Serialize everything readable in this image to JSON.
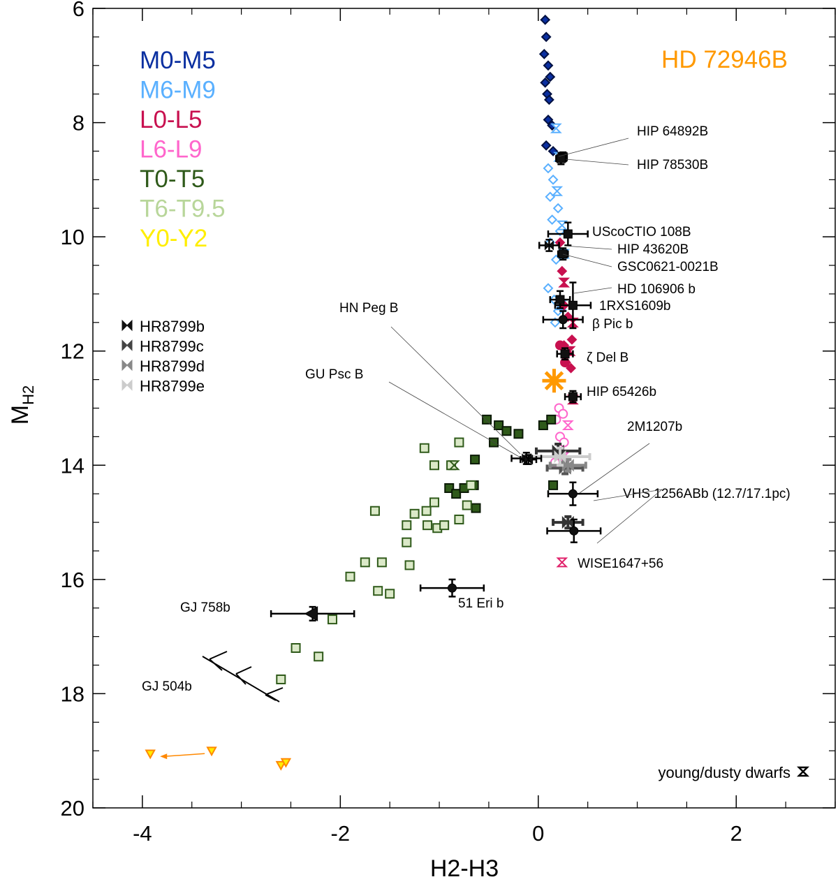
{
  "chart_data": {
    "type": "scatter",
    "title": "HD 72946B",
    "xlabel": "H2-H3",
    "ylabel": "M",
    "ylabel_sub": "H2",
    "xlim": [
      -4.5,
      3.0
    ],
    "ylim": [
      20,
      6
    ],
    "x_ticks": [
      -4,
      -2,
      0,
      2
    ],
    "x_tick_labels": [
      "-4",
      "-2",
      "0",
      "2"
    ],
    "y_ticks": [
      6,
      8,
      10,
      12,
      14,
      16,
      18,
      20
    ],
    "y_tick_labels": [
      "6",
      "8",
      "10",
      "12",
      "14",
      "16",
      "18",
      "20"
    ],
    "colors": {
      "M0-M5": "#0a2fa0",
      "M6-M9": "#5ab0ff",
      "L0-L5": "#c8104f",
      "L6-L9": "#ff66cc",
      "T0-T5": "#2f5a1a",
      "T6-T9.5": "#b8d69a",
      "Y0-Y2": "#ffee00",
      "target": "#ff9900",
      "wise": "#e0206a",
      "y_dwarf_edge": "#ff8800"
    },
    "legend": [
      {
        "label": "M0-M5",
        "color": "#0a2fa0"
      },
      {
        "label": "M6-M9",
        "color": "#5ab0ff"
      },
      {
        "label": "L0-L5",
        "color": "#c8104f"
      },
      {
        "label": "L6-L9",
        "color": "#ff66cc"
      },
      {
        "label": "T0-T5",
        "color": "#2f5a1a"
      },
      {
        "label": "T6-T9.5",
        "color": "#b8d69a"
      },
      {
        "label": "Y0-Y2",
        "color": "#ffee00"
      }
    ],
    "hr8799_legend": [
      {
        "label": "HR8799b",
        "color": "#111111"
      },
      {
        "label": "HR8799c",
        "color": "#444444"
      },
      {
        "label": "HR8799d",
        "color": "#888888"
      },
      {
        "label": "HR8799e",
        "color": "#cccccc"
      }
    ],
    "young_dwarf_label": "young/dusty dwarfs",
    "field_series": [
      {
        "name": "M0-M5",
        "marker": "diamond",
        "filled": true,
        "points": [
          [
            0.07,
            6.2
          ],
          [
            0.08,
            6.5
          ],
          [
            0.06,
            6.8
          ],
          [
            0.1,
            7.0
          ],
          [
            0.07,
            7.3
          ],
          [
            0.12,
            7.2
          ],
          [
            0.09,
            7.5
          ],
          [
            0.11,
            7.6
          ],
          [
            0.1,
            7.95
          ],
          [
            0.14,
            8.05
          ],
          [
            0.08,
            8.4
          ],
          [
            0.15,
            8.5
          ]
        ]
      },
      {
        "name": "M6-M9",
        "marker": "diamond",
        "filled": false,
        "points": [
          [
            0.1,
            8.8
          ],
          [
            0.15,
            9.0
          ],
          [
            0.12,
            9.3
          ],
          [
            0.2,
            9.5
          ],
          [
            0.14,
            9.7
          ],
          [
            0.22,
            9.9
          ],
          [
            0.12,
            10.1
          ],
          [
            0.18,
            10.4
          ],
          [
            0.1,
            10.9
          ],
          [
            0.16,
            11.1
          ],
          [
            0.2,
            11.3
          ],
          [
            0.17,
            11.5
          ]
        ]
      },
      {
        "name": "M6-M9 young",
        "marker": "hourglass",
        "filled": false,
        "points": [
          [
            0.18,
            8.1
          ],
          [
            0.21,
            8.6
          ],
          [
            0.19,
            9.2
          ],
          [
            0.24,
            9.8
          ],
          [
            0.26,
            10.3
          ],
          [
            0.23,
            11.2
          ]
        ]
      },
      {
        "name": "L0-L5",
        "marker": "diamond",
        "filled": true,
        "points": [
          [
            0.22,
            10.1
          ],
          [
            0.24,
            10.6
          ],
          [
            0.26,
            11.2
          ],
          [
            0.3,
            11.4
          ],
          [
            0.26,
            11.9
          ],
          [
            0.34,
            11.8
          ],
          [
            0.28,
            12.2
          ],
          [
            0.33,
            12.3
          ]
        ]
      },
      {
        "name": "L0-L5 young",
        "marker": "hourglass",
        "filled": true,
        "points": [
          [
            0.26,
            10.8
          ],
          [
            0.35,
            11.5
          ],
          [
            0.32,
            12.0
          ],
          [
            0.35,
            12.85
          ]
        ]
      },
      {
        "name": "L0-L5 circle",
        "marker": "circle",
        "filled": true,
        "points": [
          [
            0.22,
            11.9
          ],
          [
            0.27,
            12.2
          ]
        ]
      },
      {
        "name": "L6-L9",
        "marker": "circle",
        "filled": false,
        "points": [
          [
            0.21,
            13.0
          ],
          [
            0.25,
            13.1
          ],
          [
            0.18,
            13.2
          ],
          [
            0.22,
            13.5
          ],
          [
            0.26,
            13.6
          ],
          [
            0.19,
            13.8
          ],
          [
            0.23,
            14.0
          ],
          [
            0.17,
            13.95
          ]
        ]
      },
      {
        "name": "L6-L9 young",
        "marker": "hourglass",
        "filled": false,
        "points": [
          [
            0.3,
            13.3
          ],
          [
            0.26,
            13.85
          ]
        ]
      },
      {
        "name": "T0-T5",
        "marker": "square",
        "filled": true,
        "points": [
          [
            -0.52,
            13.2
          ],
          [
            -0.4,
            13.3
          ],
          [
            -0.32,
            13.4
          ],
          [
            -0.2,
            13.45
          ],
          [
            -0.45,
            13.6
          ],
          [
            0.05,
            13.3
          ],
          [
            0.13,
            13.2
          ],
          [
            -0.64,
            13.9
          ],
          [
            -0.9,
            14.4
          ],
          [
            -0.83,
            14.5
          ],
          [
            -0.75,
            14.4
          ],
          [
            -0.65,
            14.35
          ],
          [
            -0.63,
            14.75
          ],
          [
            0.15,
            14.35
          ]
        ]
      },
      {
        "name": "T6-T9.5",
        "marker": "square",
        "filled": false,
        "points": [
          [
            -1.15,
            13.7
          ],
          [
            -1.05,
            14.0
          ],
          [
            -0.8,
            13.6
          ],
          [
            -0.88,
            14.0
          ],
          [
            -0.68,
            14.35
          ],
          [
            -0.72,
            14.7
          ],
          [
            -0.8,
            14.95
          ],
          [
            -1.05,
            14.65
          ],
          [
            -1.13,
            14.8
          ],
          [
            -1.02,
            15.1
          ],
          [
            -0.95,
            15.05
          ],
          [
            -1.25,
            14.85
          ],
          [
            -1.12,
            15.05
          ],
          [
            -1.33,
            15.05
          ],
          [
            -1.33,
            15.35
          ],
          [
            -1.3,
            15.75
          ],
          [
            -1.65,
            14.8
          ],
          [
            -1.75,
            15.7
          ],
          [
            -1.58,
            15.7
          ],
          [
            -1.9,
            15.95
          ],
          [
            -1.62,
            16.2
          ],
          [
            -1.5,
            16.25
          ],
          [
            -2.08,
            16.7
          ],
          [
            -2.45,
            17.2
          ],
          [
            -2.22,
            17.35
          ],
          [
            -2.6,
            17.75
          ]
        ]
      },
      {
        "name": "T6-T9.5 young",
        "marker": "hourglass",
        "filled": false,
        "points": [
          [
            -0.85,
            14.0
          ]
        ]
      },
      {
        "name": "Y0-Y2",
        "marker": "triangle-down",
        "filled": true,
        "points": [
          [
            -3.92,
            19.05
          ],
          [
            -3.3,
            19.0
          ],
          [
            -2.6,
            19.25
          ],
          [
            -2.55,
            19.2
          ]
        ]
      }
    ],
    "companions": [
      {
        "name": "HIP 64892B",
        "x": 0.25,
        "y": 8.6,
        "xerr": 0.04,
        "yerr": 0.08,
        "marker": "square"
      },
      {
        "name": "HIP 78530B",
        "x": 0.23,
        "y": 8.63,
        "xerr": 0.05,
        "yerr": 0.1,
        "marker": "square"
      },
      {
        "name": "UScoCTIO 108B",
        "x": 0.3,
        "y": 9.95,
        "xerr": 0.2,
        "yerr": 0.2,
        "marker": "square"
      },
      {
        "name": "HIP 43620B",
        "x": 0.11,
        "y": 10.15,
        "xerr": 0.1,
        "yerr": 0.1,
        "marker": "hourglass"
      },
      {
        "name": "GSC0621-0021B",
        "x": 0.25,
        "y": 10.3,
        "xerr": 0.05,
        "yerr": 0.1,
        "marker": "square"
      },
      {
        "name": "HD 106906 b",
        "x": 0.22,
        "y": 11.1,
        "xerr": 0.1,
        "yerr": 0.15,
        "marker": "square"
      },
      {
        "name": "1RXS1609b",
        "x": 0.35,
        "y": 11.2,
        "xerr": 0.18,
        "yerr": 0.4,
        "marker": "square"
      },
      {
        "name": "β Pic b",
        "x": 0.25,
        "y": 11.45,
        "xerr": 0.2,
        "yerr": 0.15,
        "marker": "circle"
      },
      {
        "name": "ζ Del B",
        "x": 0.27,
        "y": 12.05,
        "xerr": 0.08,
        "yerr": 0.1,
        "marker": "square"
      },
      {
        "name": "HIP 65426b",
        "x": 0.35,
        "y": 12.8,
        "xerr": 0.08,
        "yerr": 0.1,
        "marker": "square"
      },
      {
        "name": "HN Peg B",
        "x": -0.12,
        "y": 13.88,
        "xerr": 0.15,
        "yerr": 0.1,
        "marker": "hourglass"
      },
      {
        "name": "GU Psc B",
        "x": -0.1,
        "y": 13.9,
        "xerr": 0.08,
        "yerr": 0.08,
        "marker": "hourglass"
      },
      {
        "name": "2M1207b",
        "x": 0.35,
        "y": 14.5,
        "xerr": 0.25,
        "yerr": 0.2,
        "marker": "circle"
      },
      {
        "name": "VHS 1256ABb (17.1pc)",
        "x": 0.36,
        "y": 15.15,
        "xerr": 0.27,
        "yerr": 0.2,
        "marker": "circle"
      },
      {
        "name": "51 Eri b",
        "x": -0.87,
        "y": 16.15,
        "xerr": 0.32,
        "yerr": 0.15,
        "marker": "circle"
      },
      {
        "name": "GJ 758b",
        "x": -2.28,
        "y": 16.6,
        "xerr": 0.42,
        "yerr": 0.12,
        "marker": "triangle-left"
      }
    ],
    "hr8799": [
      {
        "name": "HR8799b",
        "x": 0.2,
        "y": 13.75,
        "xerr": 0.22,
        "yerr": 0.12
      },
      {
        "name": "HR8799c",
        "x": 0.27,
        "y": 14.05,
        "xerr": 0.18,
        "yerr": 0.1
      },
      {
        "name": "HR8799d",
        "x": 0.3,
        "y": 14.0,
        "xerr": 0.18,
        "yerr": 0.1
      },
      {
        "name": "HR8799e",
        "x": 0.22,
        "y": 13.85,
        "xerr": 0.3,
        "yerr": 0.15
      },
      {
        "name": "VHS 1256ABb dark",
        "x": 0.3,
        "y": 15.0,
        "xerr": 0.15,
        "yerr": 0.1
      }
    ],
    "target": {
      "name": "HD 72946B",
      "x": 0.16,
      "y": 12.52
    },
    "wise": {
      "name": "WISE1647+56",
      "x": 0.24,
      "y": 15.7
    },
    "labels": {
      "HIP 64892B": "HIP 64892B",
      "HIP 78530B": "HIP 78530B",
      "UScoCTIO 108B": "UScoCTIO 108B",
      "HIP 43620B": "HIP 43620B",
      "GSC0621-0021B": "GSC0621-0021B",
      "HD 106906 b": "HD 106906 b",
      "1RXS1609b": "1RXS1609b",
      "beta Pic b": "β Pic b",
      "zeta Del B": "ζ Del B",
      "HIP 65426b": "HIP 65426b",
      "HN Peg B": "HN Peg B",
      "GU Psc B": "GU Psc B",
      "2M1207b": "2M1207b",
      "VHS 1256ABb": "VHS 1256ABb (12.7/17.1pc)",
      "51 Eri b": "51 Eri b",
      "GJ 758b": "GJ 758b",
      "GJ 504b": "GJ 504b",
      "WISE1647+56": "WISE1647+56"
    }
  }
}
